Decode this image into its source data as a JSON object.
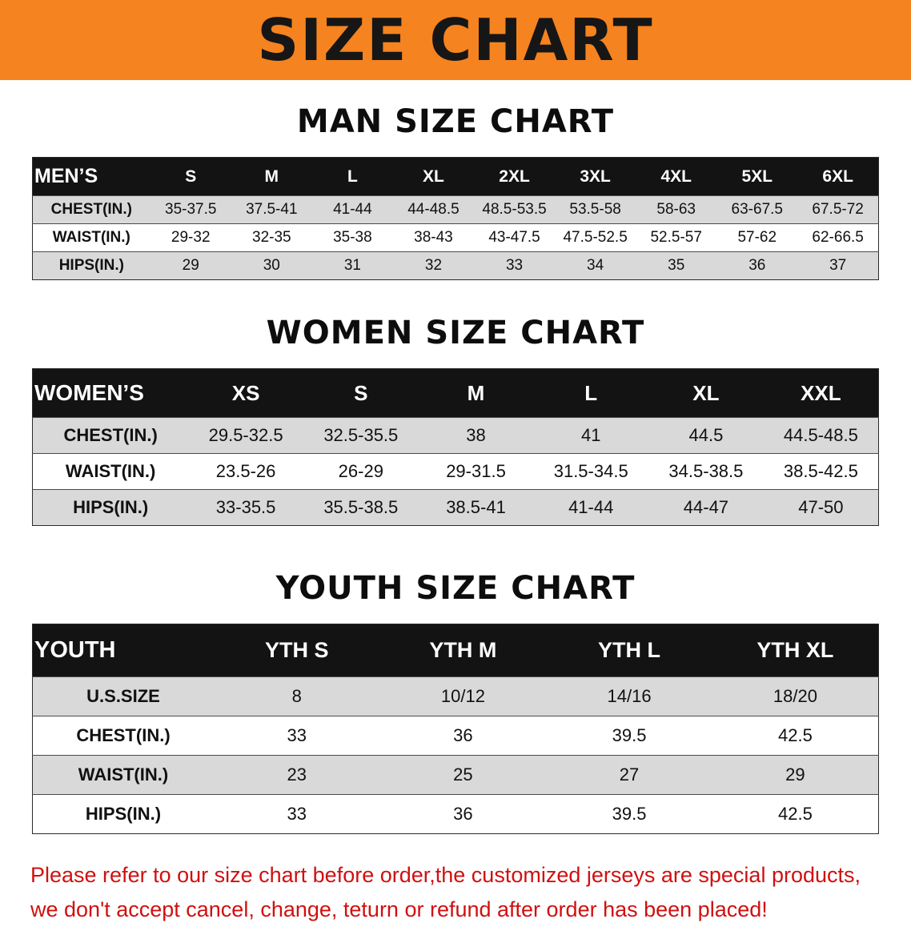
{
  "banner": {
    "title": "SIZE CHART",
    "bg_color": "#f5831f"
  },
  "sections": [
    {
      "heading": "MAN SIZE CHART",
      "table": {
        "header": [
          "MEN’S",
          "S",
          "M",
          "L",
          "XL",
          "2XL",
          "3XL",
          "4XL",
          "5XL",
          "6XL"
        ],
        "rows": [
          [
            "CHEST(IN.)",
            "35-37.5",
            "37.5-41",
            "41-44",
            "44-48.5",
            "48.5-53.5",
            "53.5-58",
            "58-63",
            "63-67.5",
            "67.5-72"
          ],
          [
            "WAIST(IN.)",
            "29-32",
            "32-35",
            "35-38",
            "38-43",
            "43-47.5",
            "47.5-52.5",
            "52.5-57",
            "57-62",
            "62-66.5"
          ],
          [
            "HIPS(IN.)",
            "29",
            "30",
            "31",
            "32",
            "33",
            "34",
            "35",
            "36",
            "37"
          ]
        ]
      }
    },
    {
      "heading": "WOMEN SIZE CHART",
      "table": {
        "header": [
          "WOMEN’S",
          "XS",
          "S",
          "M",
          "L",
          "XL",
          "XXL"
        ],
        "rows": [
          [
            "CHEST(IN.)",
            "29.5-32.5",
            "32.5-35.5",
            "38",
            "41",
            "44.5",
            "44.5-48.5"
          ],
          [
            "WAIST(IN.)",
            "23.5-26",
            "26-29",
            "29-31.5",
            "31.5-34.5",
            "34.5-38.5",
            "38.5-42.5"
          ],
          [
            "HIPS(IN.)",
            "33-35.5",
            "35.5-38.5",
            "38.5-41",
            "41-44",
            "44-47",
            "47-50"
          ]
        ]
      }
    },
    {
      "heading": "YOUTH SIZE CHART",
      "table": {
        "header": [
          "YOUTH",
          "YTH S",
          "YTH M",
          "YTH L",
          "YTH XL"
        ],
        "rows": [
          [
            "U.S.SIZE",
            "8",
            "10/12",
            "14/16",
            "18/20"
          ],
          [
            "CHEST(IN.)",
            "33",
            "36",
            "39.5",
            "42.5"
          ],
          [
            "WAIST(IN.)",
            "23",
            "25",
            "27",
            "29"
          ],
          [
            "HIPS(IN.)",
            "33",
            "36",
            "39.5",
            "42.5"
          ]
        ]
      }
    }
  ],
  "footer": {
    "line1": "Please refer to our size chart before order,the customized jerseys are special products,",
    "line2": "we don't accept cancel, change, teturn or refund after order has been placed!",
    "text_color": "#d01010"
  }
}
